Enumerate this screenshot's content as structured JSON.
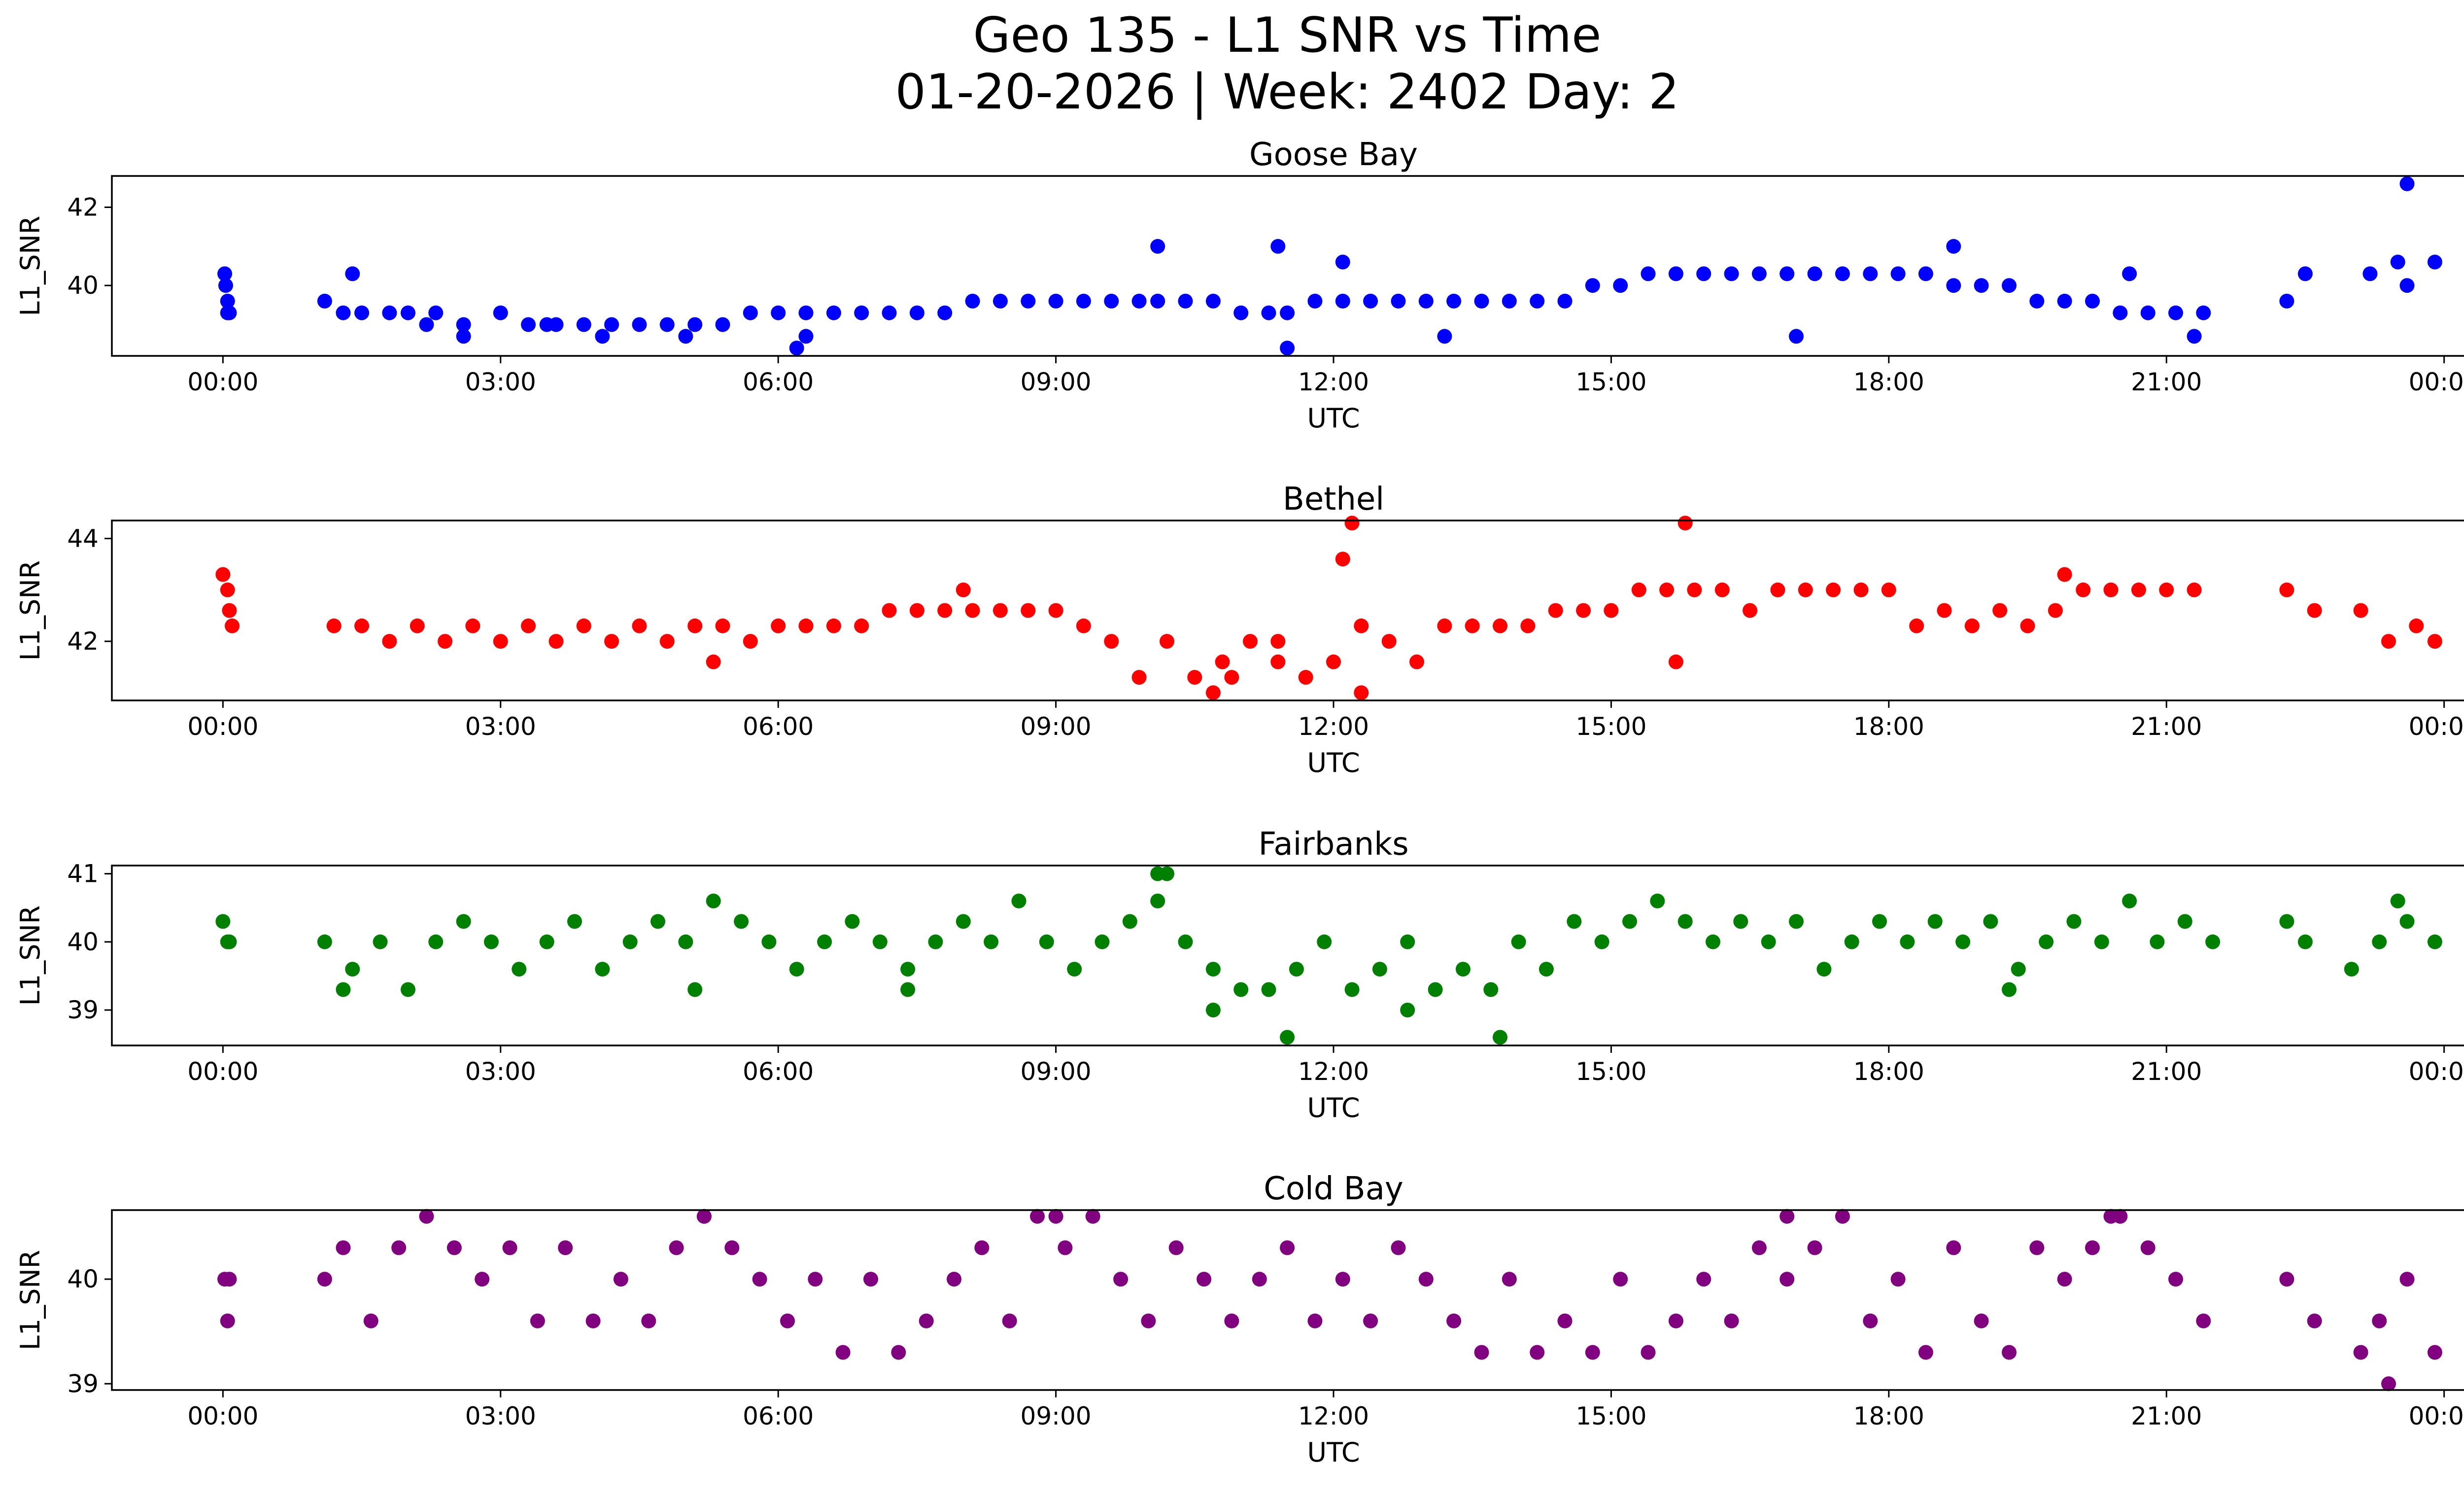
{
  "figure": {
    "title_line1": "Geo 135 - L1 SNR vs Time",
    "title_line2": "01-20-2026 | Week: 2402 Day: 2"
  },
  "chart_data": [
    {
      "type": "scatter",
      "title": "Goose Bay",
      "xlabel": "UTC",
      "ylabel": "L1_SNR",
      "color": "#0000ff",
      "xlim": [
        -1.2,
        25.2
      ],
      "ylim": [
        38.2,
        42.8
      ],
      "xticks": [
        0,
        3,
        6,
        9,
        12,
        15,
        18,
        21,
        24
      ],
      "xtick_labels": [
        "00:00",
        "03:00",
        "06:00",
        "09:00",
        "12:00",
        "15:00",
        "18:00",
        "21:00",
        "00:00"
      ],
      "yticks": [
        40,
        42
      ],
      "ytick_labels": [
        "40",
        "42"
      ],
      "series": [
        {
          "name": "L1_SNR",
          "x": [
            0.02,
            0.03,
            0.05,
            0.07,
            1.1,
            1.3,
            1.5,
            1.8,
            2.0,
            2.3,
            2.6,
            3.0,
            3.3,
            3.6,
            3.9,
            4.2,
            4.5,
            4.8,
            5.1,
            5.4,
            5.7,
            6.0,
            6.3,
            6.6,
            6.9,
            7.2,
            7.5,
            7.8,
            8.1,
            8.4,
            8.7,
            9.0,
            9.3,
            9.6,
            9.9,
            10.1,
            10.4,
            10.7,
            11.0,
            11.3,
            11.5,
            11.8,
            12.1,
            12.4,
            12.7,
            13.0,
            13.3,
            13.6,
            13.9,
            14.2,
            14.5,
            14.8,
            15.1,
            15.4,
            15.7,
            16.0,
            16.3,
            16.6,
            16.9,
            17.2,
            17.5,
            17.8,
            18.1,
            18.4,
            18.7,
            19.0,
            19.3,
            19.6,
            19.9,
            20.2,
            20.5,
            20.8,
            21.1,
            21.4,
            22.3,
            22.5,
            23.2,
            23.5,
            23.6,
            23.9,
            1.4,
            2.2,
            3.5,
            4.1,
            6.3,
            10.1,
            11.4,
            12.1,
            18.7,
            11.5,
            6.2,
            23.6,
            2.6,
            5.0,
            13.2,
            17.0,
            20.6,
            21.3,
            0.05
          ],
          "y": [
            40.3,
            40.0,
            39.6,
            39.3,
            39.6,
            39.3,
            39.3,
            39.3,
            39.3,
            39.3,
            39.0,
            39.3,
            39.0,
            39.0,
            39.0,
            39.0,
            39.0,
            39.0,
            39.0,
            39.0,
            39.3,
            39.3,
            39.3,
            39.3,
            39.3,
            39.3,
            39.3,
            39.3,
            39.6,
            39.6,
            39.6,
            39.6,
            39.6,
            39.6,
            39.6,
            39.6,
            39.6,
            39.6,
            39.3,
            39.3,
            39.3,
            39.6,
            39.6,
            39.6,
            39.6,
            39.6,
            39.6,
            39.6,
            39.6,
            39.6,
            39.6,
            40.0,
            40.0,
            40.3,
            40.3,
            40.3,
            40.3,
            40.3,
            40.3,
            40.3,
            40.3,
            40.3,
            40.3,
            40.3,
            40.0,
            40.0,
            40.0,
            39.6,
            39.6,
            39.6,
            39.3,
            39.3,
            39.3,
            39.3,
            39.6,
            40.3,
            40.3,
            40.6,
            40.0,
            40.6,
            40.3,
            39.0,
            39.0,
            38.7,
            38.7,
            41.0,
            41.0,
            40.6,
            41.0,
            38.4,
            38.4,
            42.6,
            38.7,
            38.7,
            38.7,
            38.7,
            40.3,
            38.7,
            39.3
          ]
        }
      ]
    },
    {
      "type": "scatter",
      "title": "Bethel",
      "xlabel": "UTC",
      "ylabel": "L1_SNR",
      "color": "#ff0000",
      "xlim": [
        -1.2,
        25.2
      ],
      "ylim": [
        40.85,
        44.35
      ],
      "xticks": [
        0,
        3,
        6,
        9,
        12,
        15,
        18,
        21,
        24
      ],
      "xtick_labels": [
        "00:00",
        "03:00",
        "06:00",
        "09:00",
        "12:00",
        "15:00",
        "18:00",
        "21:00",
        "00:00"
      ],
      "yticks": [
        42,
        44
      ],
      "ytick_labels": [
        "42",
        "44"
      ],
      "series": [
        {
          "name": "L1_SNR",
          "x": [
            0.0,
            0.05,
            0.07,
            0.1,
            1.2,
            1.5,
            1.8,
            2.1,
            2.4,
            2.7,
            3.0,
            3.3,
            3.6,
            3.9,
            4.2,
            4.5,
            4.8,
            5.1,
            5.4,
            5.7,
            6.0,
            6.3,
            6.6,
            6.9,
            7.2,
            7.5,
            7.8,
            8.1,
            8.4,
            8.7,
            9.0,
            9.3,
            9.6,
            9.9,
            10.2,
            10.5,
            10.8,
            11.1,
            11.4,
            11.7,
            12.0,
            12.3,
            12.6,
            12.9,
            13.2,
            13.5,
            13.8,
            14.1,
            14.4,
            14.7,
            15.0,
            15.3,
            15.6,
            15.9,
            16.2,
            16.5,
            16.8,
            17.1,
            17.4,
            17.7,
            18.0,
            18.3,
            18.6,
            18.9,
            19.2,
            19.5,
            19.8,
            20.1,
            20.4,
            20.7,
            21.0,
            21.3,
            22.3,
            22.6,
            23.1,
            23.4,
            23.7,
            23.9,
            12.2,
            12.1,
            15.8,
            10.7,
            12.3,
            8.0,
            5.3,
            15.7,
            19.9,
            10.9,
            11.4
          ],
          "y": [
            43.3,
            43.0,
            42.6,
            42.3,
            42.3,
            42.3,
            42.0,
            42.3,
            42.0,
            42.3,
            42.0,
            42.3,
            42.0,
            42.3,
            42.0,
            42.3,
            42.0,
            42.3,
            42.3,
            42.0,
            42.3,
            42.3,
            42.3,
            42.3,
            42.6,
            42.6,
            42.6,
            42.6,
            42.6,
            42.6,
            42.6,
            42.3,
            42.0,
            41.3,
            42.0,
            41.3,
            41.6,
            42.0,
            42.0,
            41.3,
            41.6,
            42.3,
            42.0,
            41.6,
            42.3,
            42.3,
            42.3,
            42.3,
            42.6,
            42.6,
            42.6,
            43.0,
            43.0,
            43.0,
            43.0,
            42.6,
            43.0,
            43.0,
            43.0,
            43.0,
            43.0,
            42.3,
            42.6,
            42.3,
            42.6,
            42.3,
            42.6,
            43.0,
            43.0,
            43.0,
            43.0,
            43.0,
            43.0,
            42.6,
            42.6,
            42.0,
            42.3,
            42.0,
            44.3,
            43.6,
            44.3,
            41.0,
            41.0,
            43.0,
            41.6,
            41.6,
            43.3,
            41.3,
            41.6
          ]
        }
      ]
    },
    {
      "type": "scatter",
      "title": "Fairbanks",
      "xlabel": "UTC",
      "ylabel": "L1_SNR",
      "color": "#008000",
      "xlim": [
        -1.2,
        25.2
      ],
      "ylim": [
        38.48,
        41.12
      ],
      "xticks": [
        0,
        3,
        6,
        9,
        12,
        15,
        18,
        21,
        24
      ],
      "xtick_labels": [
        "00:00",
        "03:00",
        "06:00",
        "09:00",
        "12:00",
        "15:00",
        "18:00",
        "21:00",
        "00:00"
      ],
      "yticks": [
        39,
        40,
        41
      ],
      "ytick_labels": [
        "39",
        "40",
        "41"
      ],
      "series": [
        {
          "name": "L1_SNR",
          "x": [
            0.0,
            0.05,
            0.07,
            1.1,
            1.4,
            1.7,
            2.0,
            2.3,
            2.6,
            2.9,
            3.2,
            3.5,
            3.8,
            4.1,
            4.4,
            4.7,
            5.0,
            5.3,
            5.6,
            5.9,
            6.2,
            6.5,
            6.8,
            7.1,
            7.4,
            7.7,
            8.0,
            8.3,
            8.6,
            8.9,
            9.2,
            9.5,
            9.8,
            10.1,
            10.4,
            10.7,
            11.0,
            11.3,
            11.6,
            11.9,
            12.2,
            12.5,
            12.8,
            13.1,
            13.4,
            13.7,
            14.0,
            14.3,
            14.6,
            14.9,
            15.2,
            15.5,
            15.8,
            16.1,
            16.4,
            16.7,
            17.0,
            17.3,
            17.6,
            17.9,
            18.2,
            18.5,
            18.8,
            19.1,
            19.4,
            19.7,
            20.0,
            20.3,
            20.6,
            20.9,
            21.2,
            21.5,
            22.3,
            22.5,
            23.0,
            23.3,
            23.6,
            23.9,
            10.1,
            10.2,
            11.5,
            13.8,
            23.5,
            10.7,
            12.8,
            1.3,
            5.1,
            7.4,
            19.3
          ],
          "y": [
            40.3,
            40.0,
            40.0,
            40.0,
            39.6,
            40.0,
            39.3,
            40.0,
            40.3,
            40.0,
            39.6,
            40.0,
            40.3,
            39.6,
            40.0,
            40.3,
            40.0,
            40.6,
            40.3,
            40.0,
            39.6,
            40.0,
            40.3,
            40.0,
            39.6,
            40.0,
            40.3,
            40.0,
            40.6,
            40.0,
            39.6,
            40.0,
            40.3,
            40.6,
            40.0,
            39.6,
            39.3,
            39.3,
            39.6,
            40.0,
            39.3,
            39.6,
            40.0,
            39.3,
            39.6,
            39.3,
            40.0,
            39.6,
            40.3,
            40.0,
            40.3,
            40.6,
            40.3,
            40.0,
            40.3,
            40.0,
            40.3,
            39.6,
            40.0,
            40.3,
            40.0,
            40.3,
            40.0,
            40.3,
            39.6,
            40.0,
            40.3,
            40.0,
            40.6,
            40.0,
            40.3,
            40.0,
            40.3,
            40.0,
            39.6,
            40.0,
            40.3,
            40.0,
            41.0,
            41.0,
            38.6,
            38.6,
            40.6,
            39.0,
            39.0,
            39.3,
            39.3,
            39.3,
            39.3
          ]
        }
      ]
    },
    {
      "type": "scatter",
      "title": "Cold Bay",
      "xlabel": "UTC",
      "ylabel": "L1_SNR",
      "color": "#800080",
      "xlim": [
        -1.2,
        25.2
      ],
      "ylim": [
        38.94,
        40.66
      ],
      "xticks": [
        0,
        3,
        6,
        9,
        12,
        15,
        18,
        21,
        24
      ],
      "xtick_labels": [
        "00:00",
        "03:00",
        "06:00",
        "09:00",
        "12:00",
        "15:00",
        "18:00",
        "21:00",
        "00:00"
      ],
      "yticks": [
        39,
        40
      ],
      "ytick_labels": [
        "39",
        "40"
      ],
      "series": [
        {
          "name": "L1_SNR",
          "x": [
            0.02,
            0.05,
            0.07,
            1.1,
            1.3,
            1.6,
            1.9,
            2.2,
            2.5,
            2.8,
            3.1,
            3.4,
            3.7,
            4.0,
            4.3,
            4.6,
            4.9,
            5.2,
            5.5,
            5.8,
            6.1,
            6.4,
            6.7,
            7.0,
            7.3,
            7.6,
            7.9,
            8.2,
            8.5,
            8.8,
            9.1,
            9.4,
            9.7,
            10.0,
            10.3,
            10.6,
            10.9,
            11.2,
            11.5,
            11.8,
            12.1,
            12.4,
            12.7,
            13.0,
            13.3,
            13.6,
            13.9,
            14.2,
            14.5,
            14.8,
            15.1,
            15.4,
            15.7,
            16.0,
            16.3,
            16.6,
            16.9,
            17.2,
            17.5,
            17.8,
            18.1,
            18.4,
            18.7,
            19.0,
            19.3,
            19.6,
            19.9,
            20.2,
            20.5,
            20.8,
            21.1,
            21.4,
            22.3,
            22.6,
            23.1,
            23.3,
            23.6,
            23.9,
            23.4,
            5.2,
            9.0,
            16.9,
            20.4
          ],
          "y": [
            40.0,
            39.6,
            40.0,
            40.0,
            40.3,
            39.6,
            40.3,
            40.6,
            40.3,
            40.0,
            40.3,
            39.6,
            40.3,
            39.6,
            40.0,
            39.6,
            40.3,
            40.6,
            40.3,
            40.0,
            39.6,
            40.0,
            39.3,
            40.0,
            39.3,
            39.6,
            40.0,
            40.3,
            39.6,
            40.6,
            40.3,
            40.6,
            40.0,
            39.6,
            40.3,
            40.0,
            39.6,
            40.0,
            40.3,
            39.6,
            40.0,
            39.6,
            40.3,
            40.0,
            39.6,
            39.3,
            40.0,
            39.3,
            39.6,
            39.3,
            40.0,
            39.3,
            39.6,
            40.0,
            39.6,
            40.3,
            40.0,
            40.3,
            40.6,
            39.6,
            40.0,
            39.3,
            40.3,
            39.6,
            39.3,
            40.3,
            40.0,
            40.3,
            40.6,
            40.3,
            40.0,
            39.6,
            40.0,
            39.6,
            39.3,
            39.6,
            40.0,
            39.3,
            39.0,
            40.6,
            40.6,
            40.6,
            40.6
          ]
        }
      ]
    }
  ]
}
